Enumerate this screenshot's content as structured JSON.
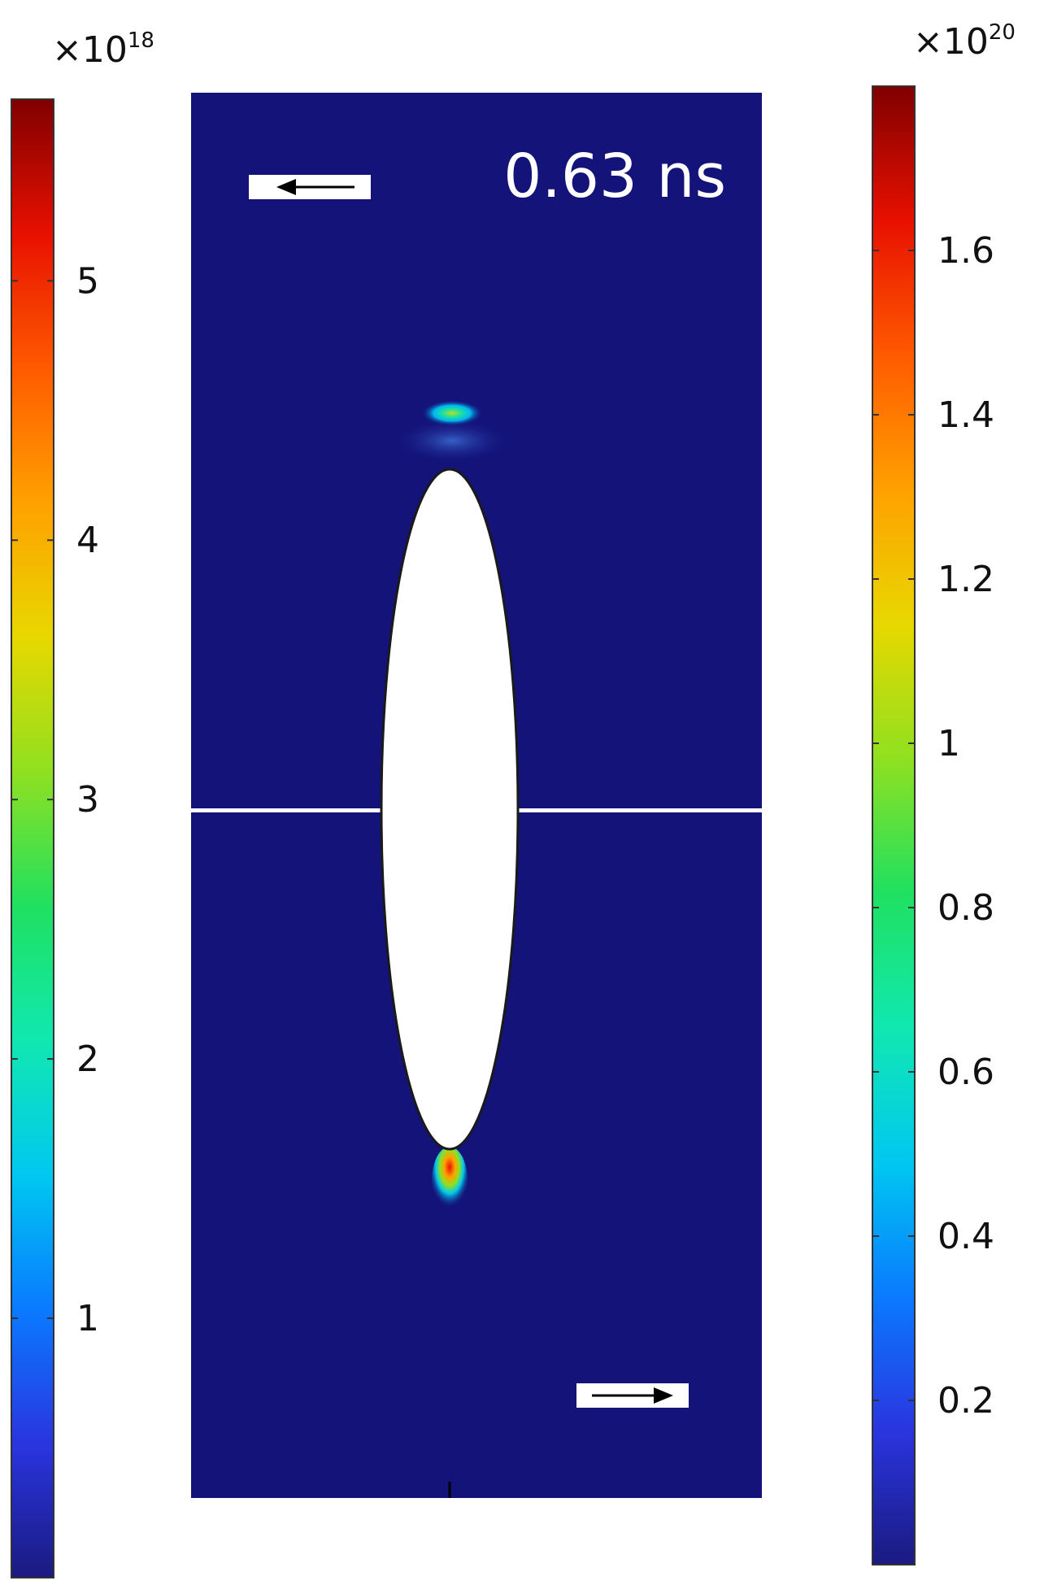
{
  "chart_data": {
    "type": "heatmap",
    "annotation": "0.63 ns",
    "left_colorbar": {
      "multiplier_base": "×10",
      "multiplier_exponent": "18",
      "range": [
        0,
        5.7
      ],
      "ticks": [
        1,
        2,
        3,
        4,
        5
      ],
      "tick_labels": [
        "1",
        "2",
        "3",
        "4",
        "5"
      ]
    },
    "right_colorbar": {
      "multiplier_base": "×10",
      "multiplier_exponent": "20",
      "range": [
        0,
        1.8
      ],
      "ticks": [
        0.2,
        0.4,
        0.6,
        0.8,
        1.0,
        1.2,
        1.4,
        1.6
      ],
      "tick_labels": [
        "0.2",
        "0.4",
        "0.6",
        "0.8",
        "1",
        "1.2",
        "1.4",
        "1.6"
      ]
    },
    "colormap": [
      "#1a1a80",
      "#2a35e0",
      "#0a7aff",
      "#00c8f0",
      "#10e8b0",
      "#20e060",
      "#90e020",
      "#e8d800",
      "#ffa000",
      "#ff5a00",
      "#e81000",
      "#800000"
    ],
    "field_background": "#13137a",
    "arrows": {
      "top": "left",
      "bottom": "right"
    }
  }
}
